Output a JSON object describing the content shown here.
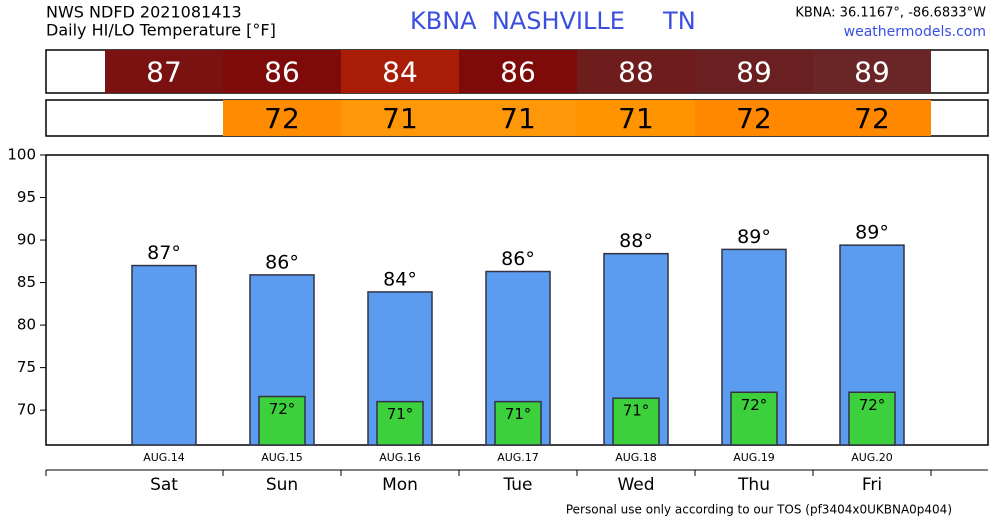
{
  "chart_data": {
    "type": "bar",
    "title": "NWS NDFD 2021081413",
    "subtitle": "Daily HI/LO Temperature [°F]",
    "station": "KBNA  NASHVILLE     TN",
    "coords": "KBNA: 36.1167°, -86.6833°W",
    "site": "weathermodels.com",
    "footer": "Personal use only according to our TOS (pf3404x0UKBNA0p404)",
    "categories": [
      "Sat",
      "Sun",
      "Mon",
      "Tue",
      "Wed",
      "Thu",
      "Fri"
    ],
    "dates": [
      "AUG.14",
      "AUG.15",
      "AUG.16",
      "AUG.17",
      "AUG.18",
      "AUG.19",
      "AUG.20"
    ],
    "series": [
      {
        "color": "#5b9cf0",
        "values": [
          87,
          85.9,
          83.9,
          86.3,
          88.4,
          88.9,
          89.4
        ],
        "value_labels": [
          "87°",
          "86°",
          "84°",
          "86°",
          "88°",
          "89°",
          "89°"
        ],
        "strip_labels": [
          "87",
          "86",
          "84",
          "86",
          "88",
          "89",
          "89"
        ],
        "strip_colors": [
          "#7a1212",
          "#7e0a0a",
          "#a81c08",
          "#7e0a0a",
          "#6e1c1c",
          "#6a2020",
          "#6a2626"
        ]
      },
      {
        "color": "#3cd03c",
        "values": [
          null,
          71.6,
          71.0,
          71.0,
          71.4,
          72.1,
          72.1
        ],
        "value_labels": [
          null,
          "72°",
          "71°",
          "71°",
          "71°",
          "72°",
          "72°"
        ],
        "strip_labels": [
          null,
          "72",
          "71",
          "71",
          "71",
          "72",
          "72"
        ],
        "strip_colors": [
          null,
          "#ff8c00",
          "#ff9808",
          "#ff9808",
          "#ff9300",
          "#ff8800",
          "#ff8800"
        ]
      }
    ],
    "ylim": [
      65.9,
      100
    ],
    "yticks": [
      70,
      75,
      80,
      85,
      90,
      95,
      100
    ],
    "grid": false
  }
}
